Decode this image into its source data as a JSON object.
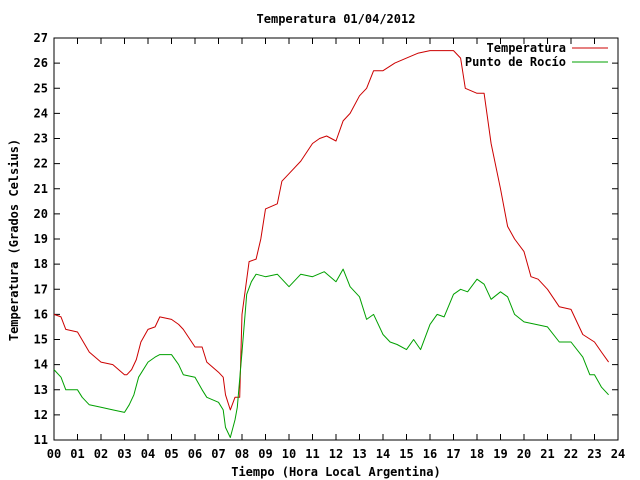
{
  "chart_data": {
    "type": "line",
    "title": "Temperatura 01/04/2012",
    "xlabel": "Tiempo (Hora Local Argentina)",
    "ylabel": "Temperatura (Grados Celsius)",
    "xlim": [
      0,
      24
    ],
    "ylim": [
      11,
      27
    ],
    "x_ticks": [
      "00",
      "01",
      "02",
      "03",
      "04",
      "05",
      "06",
      "07",
      "08",
      "09",
      "10",
      "11",
      "12",
      "13",
      "14",
      "15",
      "16",
      "17",
      "18",
      "19",
      "20",
      "21",
      "22",
      "23",
      "24"
    ],
    "y_ticks": [
      "11",
      "12",
      "13",
      "14",
      "15",
      "16",
      "17",
      "18",
      "19",
      "20",
      "21",
      "22",
      "23",
      "24",
      "25",
      "26",
      "27"
    ],
    "grid": false,
    "legend_position": "top-right",
    "series": [
      {
        "name": "Temperatura",
        "color": "#cc0000",
        "x": [
          0.0,
          0.3,
          0.5,
          1.0,
          1.5,
          2.0,
          2.5,
          3.0,
          3.1,
          3.3,
          3.5,
          3.7,
          4.0,
          4.3,
          4.5,
          5.0,
          5.3,
          5.5,
          6.0,
          6.3,
          6.5,
          7.0,
          7.2,
          7.3,
          7.5,
          7.7,
          7.8,
          7.9,
          8.0,
          8.3,
          8.6,
          8.8,
          9.0,
          9.5,
          9.7,
          10.0,
          10.5,
          11.0,
          11.3,
          11.6,
          12.0,
          12.3,
          12.6,
          13.0,
          13.3,
          13.6,
          14.0,
          14.5,
          15.0,
          15.5,
          16.0,
          16.5,
          17.0,
          17.3,
          17.5,
          18.0,
          18.3,
          18.6,
          19.0,
          19.3,
          19.6,
          20.0,
          20.3,
          20.6,
          21.0,
          21.5,
          22.0,
          22.5,
          23.0,
          23.3,
          23.6
        ],
        "values": [
          16.0,
          15.9,
          15.4,
          15.3,
          14.5,
          14.1,
          14.0,
          13.6,
          13.6,
          13.8,
          14.2,
          14.9,
          15.4,
          15.5,
          15.9,
          15.8,
          15.6,
          15.4,
          14.7,
          14.7,
          14.1,
          13.7,
          13.5,
          12.8,
          12.2,
          12.7,
          12.7,
          12.7,
          16.0,
          18.1,
          18.2,
          19.0,
          20.2,
          20.4,
          21.3,
          21.6,
          22.1,
          22.8,
          23.0,
          23.1,
          22.9,
          23.7,
          24.0,
          24.7,
          25.0,
          25.7,
          25.7,
          26.0,
          26.2,
          26.4,
          26.5,
          26.5,
          26.5,
          26.2,
          25.0,
          24.8,
          24.8,
          22.8,
          21.0,
          19.5,
          19.0,
          18.5,
          17.5,
          17.4,
          17.0,
          16.3,
          16.2,
          15.2,
          14.9,
          14.5,
          14.1
        ]
      },
      {
        "name": "Punto de Rocío",
        "color": "#00a000",
        "x": [
          0.0,
          0.3,
          0.5,
          1.0,
          1.2,
          1.5,
          2.0,
          2.5,
          3.0,
          3.2,
          3.4,
          3.6,
          4.0,
          4.3,
          4.5,
          5.0,
          5.3,
          5.5,
          6.0,
          6.3,
          6.5,
          7.0,
          7.2,
          7.3,
          7.5,
          7.7,
          7.8,
          8.0,
          8.2,
          8.4,
          8.6,
          9.0,
          9.5,
          10.0,
          10.5,
          11.0,
          11.5,
          12.0,
          12.3,
          12.6,
          13.0,
          13.3,
          13.6,
          14.0,
          14.3,
          14.6,
          15.0,
          15.3,
          15.6,
          16.0,
          16.3,
          16.6,
          17.0,
          17.3,
          17.6,
          18.0,
          18.3,
          18.6,
          19.0,
          19.3,
          19.6,
          20.0,
          20.5,
          21.0,
          21.5,
          22.0,
          22.5,
          22.8,
          23.0,
          23.3,
          23.6
        ],
        "values": [
          13.8,
          13.5,
          13.0,
          13.0,
          12.7,
          12.4,
          12.3,
          12.2,
          12.1,
          12.4,
          12.8,
          13.5,
          14.1,
          14.3,
          14.4,
          14.4,
          14.0,
          13.6,
          13.5,
          13.0,
          12.7,
          12.5,
          12.2,
          11.5,
          11.1,
          11.8,
          12.3,
          14.5,
          16.8,
          17.3,
          17.6,
          17.5,
          17.6,
          17.1,
          17.6,
          17.5,
          17.7,
          17.3,
          17.8,
          17.1,
          16.7,
          15.8,
          16.0,
          15.2,
          14.9,
          14.8,
          14.6,
          15.0,
          14.6,
          15.6,
          16.0,
          15.9,
          16.8,
          17.0,
          16.9,
          17.4,
          17.2,
          16.6,
          16.9,
          16.7,
          16.0,
          15.7,
          15.6,
          15.5,
          14.9,
          14.9,
          14.3,
          13.6,
          13.6,
          13.1,
          12.8
        ]
      }
    ]
  }
}
